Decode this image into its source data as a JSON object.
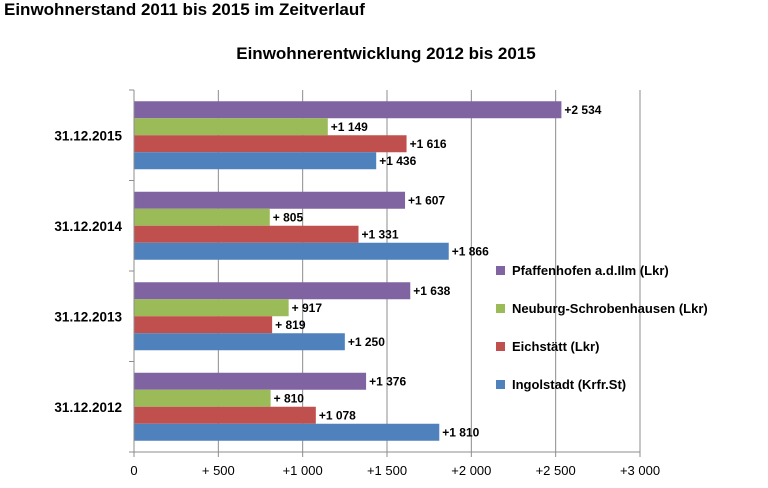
{
  "page": {
    "heading": "Einwohnerstand 2011 bis 2015 im Zeitverlauf"
  },
  "chart_data": {
    "type": "bar",
    "orientation": "horizontal",
    "title": "Einwohnerentwicklung 2012 bis 2015",
    "categories": [
      "31.12.2015",
      "31.12.2014",
      "31.12.2013",
      "31.12.2012"
    ],
    "series": [
      {
        "name": "Pfaffenhofen a.d.Ilm (Lkr)",
        "color": "#8064a2",
        "values": [
          2534,
          1607,
          1638,
          1376
        ],
        "labels": [
          "+2 534",
          "+1 607",
          "+1 638",
          "+1 376"
        ]
      },
      {
        "name": "Neuburg-Schrobenhausen (Lkr)",
        "color": "#9bbb59",
        "values": [
          1149,
          805,
          917,
          810
        ],
        "labels": [
          "+1 149",
          "+ 805",
          "+ 917",
          "+ 810"
        ]
      },
      {
        "name": "Eichstätt (Lkr)",
        "color": "#c0504d",
        "values": [
          1616,
          1331,
          819,
          1078
        ],
        "labels": [
          "+1 616",
          "+1 331",
          "+ 819",
          "+1 078"
        ]
      },
      {
        "name": "Ingolstadt (Krfr.St)",
        "color": "#4f81bd",
        "values": [
          1436,
          1866,
          1250,
          1810
        ],
        "labels": [
          "+1 436",
          "+1 866",
          "+1 250",
          "+1 810"
        ]
      }
    ],
    "legend_order": [
      "Pfaffenhofen a.d.Ilm (Lkr)",
      "Neuburg-Schrobenhausen (Lkr)",
      "Eichstätt (Lkr)",
      "Ingolstadt (Krfr.St)"
    ],
    "xlim": [
      0,
      3000
    ],
    "x_ticks": [
      0,
      500,
      1000,
      1500,
      2000,
      2500,
      3000
    ],
    "x_tick_labels": [
      "0",
      "+ 500",
      "+1 000",
      "+1 500",
      "+2 000",
      "+2 500",
      "+3 000"
    ],
    "grid": "vertical",
    "legend_position": "right"
  }
}
